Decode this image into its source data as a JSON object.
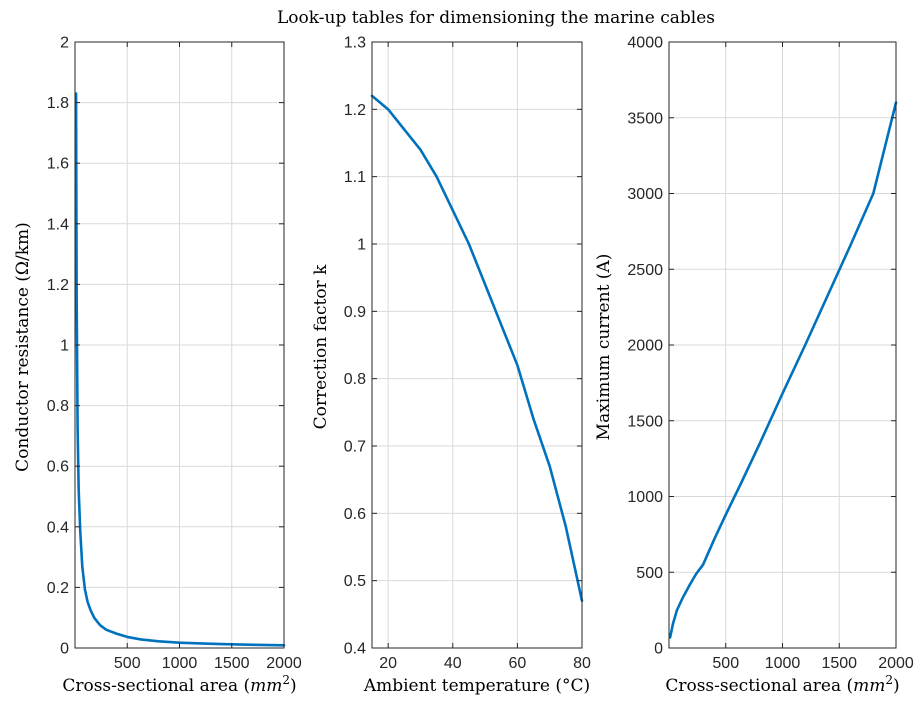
{
  "figure_title": "Look-up tables for dimensioning the marine cables",
  "colors": {
    "line": "#0072BD",
    "grid": "#d9d9d9",
    "axis": "#262626",
    "background": "#ffffff"
  },
  "chart_data": [
    {
      "type": "line",
      "xlabel_main": "Cross-sectional area (",
      "xlabel_math": "mm",
      "xlabel_sup": "2",
      "xlabel_close": ")",
      "ylabel": "Conductor resistance (Ω/km)",
      "xlim": [
        0,
        2000
      ],
      "ylim": [
        0,
        2
      ],
      "xticks": [
        500,
        1000,
        1500,
        2000
      ],
      "yticks": [
        0,
        0.2,
        0.4,
        0.6,
        0.8,
        1,
        1.2,
        1.4,
        1.6,
        1.8,
        2
      ],
      "grid": true,
      "series": [
        {
          "x": [
            10,
            16,
            25,
            35,
            50,
            70,
            95,
            120,
            150,
            185,
            240,
            300,
            400,
            500,
            630,
            800,
            1000,
            1200,
            1400,
            1600,
            1800,
            2000
          ],
          "y": [
            1.83,
            1.15,
            0.727,
            0.524,
            0.387,
            0.268,
            0.193,
            0.153,
            0.124,
            0.0991,
            0.0754,
            0.0601,
            0.047,
            0.0366,
            0.0283,
            0.0221,
            0.0176,
            0.0151,
            0.0129,
            0.0113,
            0.0101,
            0.009
          ]
        }
      ]
    },
    {
      "type": "line",
      "xlabel": "Ambient temperature (°C)",
      "ylabel": "Correction factor k",
      "xlim": [
        15,
        80
      ],
      "ylim": [
        0.4,
        1.3
      ],
      "xticks": [
        20,
        40,
        60,
        80
      ],
      "yticks": [
        0.4,
        0.5,
        0.6,
        0.7,
        0.8,
        0.9,
        1,
        1.1,
        1.2,
        1.3
      ],
      "grid": true,
      "series": [
        {
          "x": [
            15,
            20,
            25,
            30,
            35,
            40,
            45,
            50,
            55,
            60,
            65,
            70,
            75,
            80
          ],
          "y": [
            1.22,
            1.2,
            1.17,
            1.14,
            1.1,
            1.05,
            1.0,
            0.94,
            0.88,
            0.82,
            0.74,
            0.67,
            0.58,
            0.47
          ]
        }
      ]
    },
    {
      "type": "line",
      "xlabel_main": "Cross-sectional area (",
      "xlabel_math": "mm",
      "xlabel_sup": "2",
      "xlabel_close": ")",
      "ylabel": "Maximum current (A)",
      "xlim": [
        0,
        2000
      ],
      "ylim": [
        0,
        4000
      ],
      "xticks": [
        500,
        1000,
        1500,
        2000
      ],
      "yticks": [
        0,
        500,
        1000,
        1500,
        2000,
        2500,
        3000,
        3500,
        4000
      ],
      "grid": true,
      "series": [
        {
          "x": [
            10,
            35,
            70,
            120,
            185,
            240,
            300,
            400,
            500,
            630,
            800,
            1000,
            1200,
            1400,
            1600,
            1800,
            2000
          ],
          "y": [
            70,
            160,
            250,
            330,
            420,
            490,
            550,
            720,
            880,
            1080,
            1350,
            1680,
            2000,
            2330,
            2660,
            3000,
            3600
          ]
        }
      ]
    }
  ]
}
